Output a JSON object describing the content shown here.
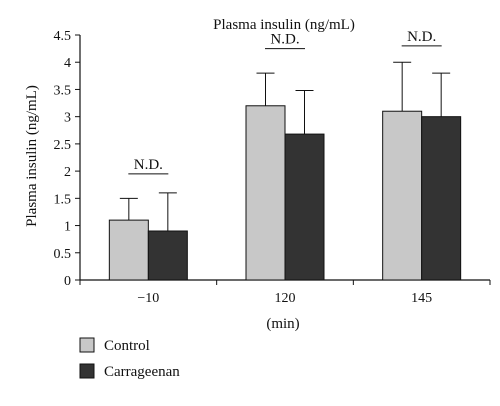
{
  "chart_data": {
    "type": "bar",
    "title": "Plasma insulin (ng/mL)",
    "xlabel": "(min)",
    "ylabel": "Plasma insulin (ng/mL)",
    "ylim": [
      0,
      4.5
    ],
    "yticks": [
      "0",
      "0.5",
      "1",
      "1.5",
      "2",
      "2.5",
      "3",
      "3.5",
      "4",
      "4.5"
    ],
    "categories": [
      "−10",
      "120",
      "145"
    ],
    "series": [
      {
        "name": "Control",
        "color": "#c8c8c8",
        "values": [
          1.1,
          3.2,
          3.1
        ],
        "errors": [
          0.4,
          0.6,
          0.9
        ]
      },
      {
        "name": "Carrageenan",
        "color": "#333333",
        "values": [
          0.9,
          2.68,
          3.0
        ],
        "errors": [
          0.7,
          0.8,
          0.8
        ]
      }
    ],
    "annotations": [
      {
        "category_index": 0,
        "text": "N.D.",
        "y": 1.95
      },
      {
        "category_index": 1,
        "text": "N.D.",
        "y": 4.25
      },
      {
        "category_index": 2,
        "text": "N.D.",
        "y": 4.3
      }
    ],
    "legend": {
      "placement": "bottom-left"
    },
    "grid": false
  }
}
